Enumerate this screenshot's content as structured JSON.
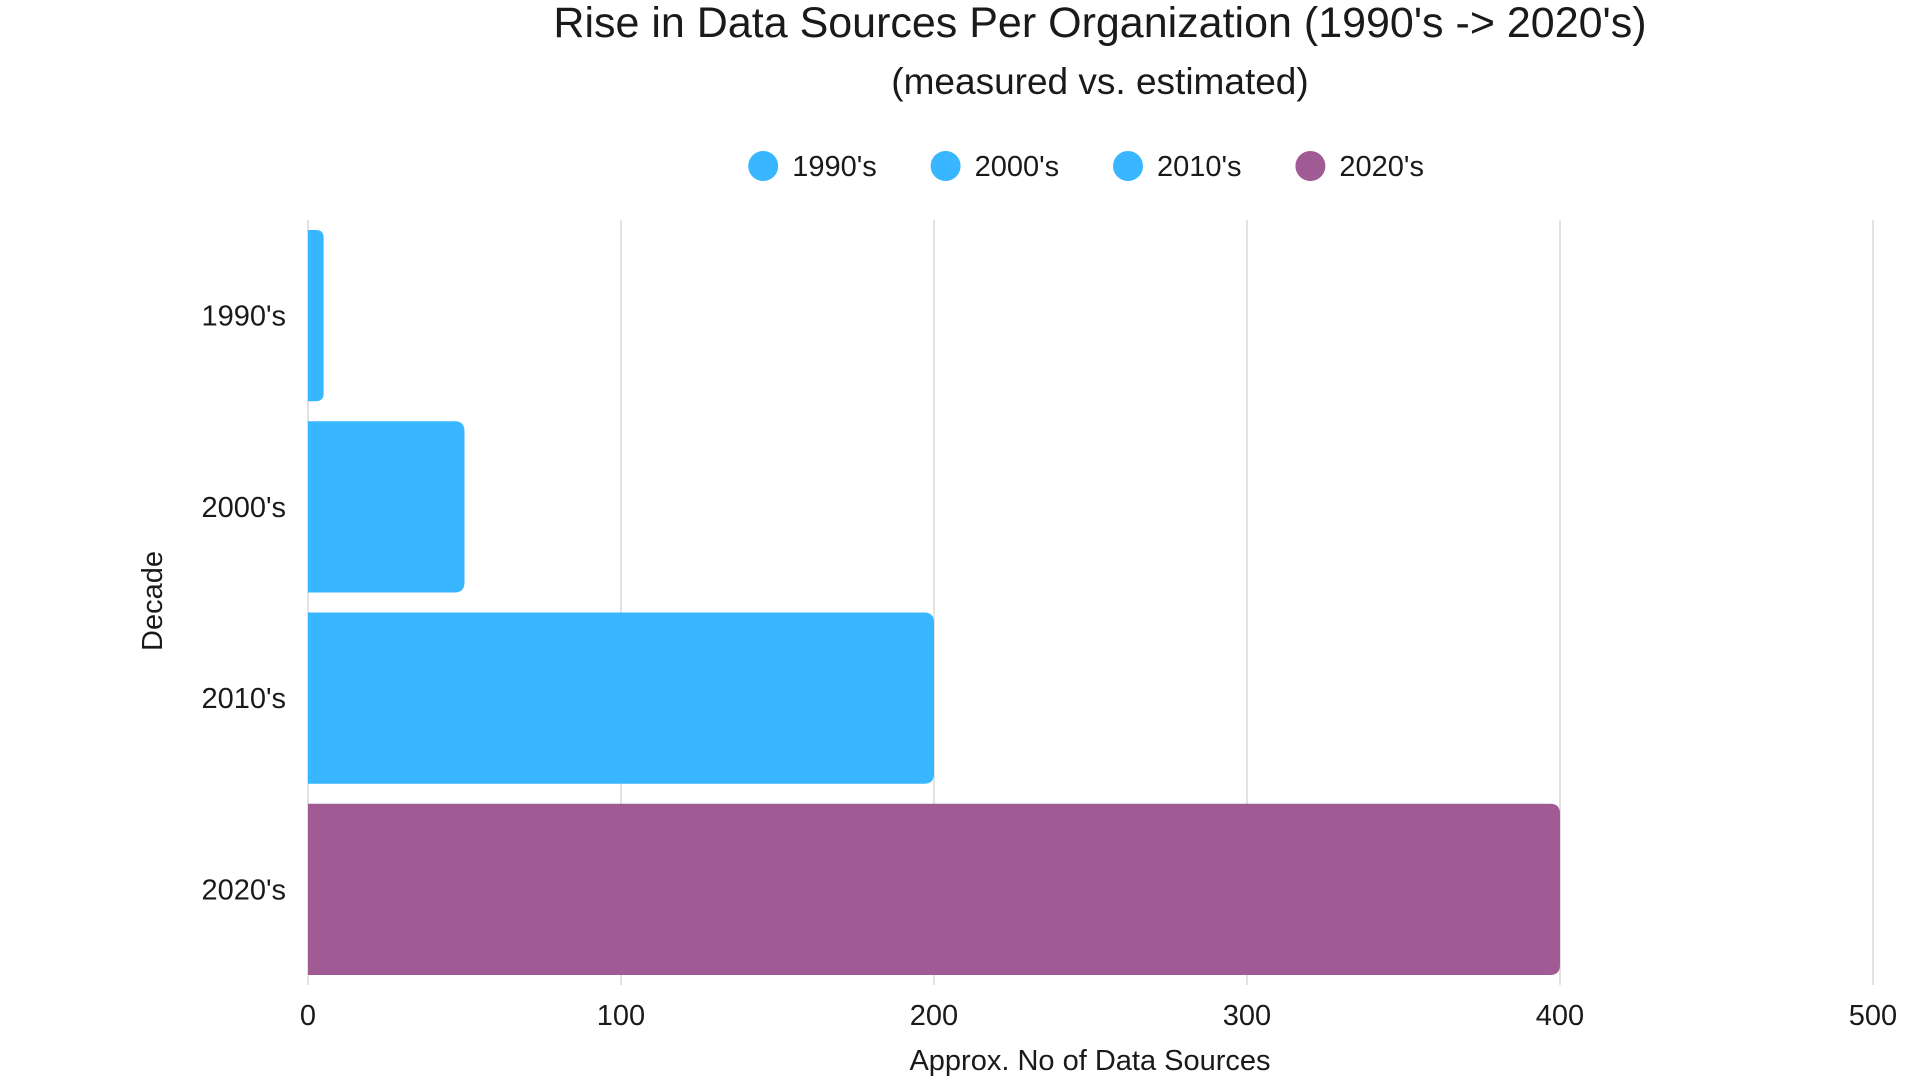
{
  "chart_data": {
    "type": "bar",
    "orientation": "horizontal",
    "title": "Rise in Data Sources Per Organization (1990's -> 2020's)",
    "subtitle": "(measured vs. estimated)",
    "xlabel": "Approx. No of Data Sources",
    "ylabel": "Decade",
    "xlim": [
      0,
      500
    ],
    "xticks": [
      "0",
      "100",
      "200",
      "300",
      "400",
      "500"
    ],
    "categories": [
      "1990's",
      "2000's",
      "2010's",
      "2020's"
    ],
    "values": [
      5,
      50,
      200,
      400
    ],
    "colors": [
      "#38b6ff",
      "#38b6ff",
      "#38b6ff",
      "#a05a94"
    ],
    "legend": {
      "placement": "top-center",
      "entries": [
        "1990's",
        "2000's",
        "2010's",
        "2020's"
      ]
    },
    "grid": "vertical"
  }
}
